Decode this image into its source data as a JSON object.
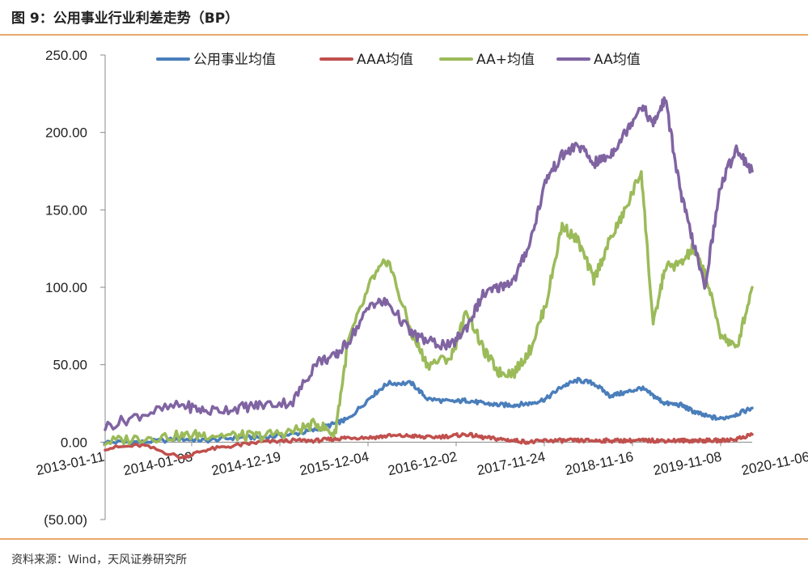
{
  "title": "图 9：公用事业行业利差走势（BP）",
  "source": "资料来源：Wind，天风证券研究所",
  "colors": {
    "rule": "#e8a86a",
    "negative_label": "#c00000"
  },
  "chart_data": {
    "type": "line",
    "title": "图 9：公用事业行业利差走势（BP）",
    "ylim": [
      -50,
      250
    ],
    "yticks": [
      "250.00",
      "200.00",
      "150.00",
      "100.00",
      "50.00",
      "0.00",
      "(50.00)"
    ],
    "xtick_labels": [
      "2013-01-11",
      "2014-01-03",
      "2014-12-19",
      "2015-12-04",
      "2016-12-02",
      "2017-11-24",
      "2018-11-16",
      "2019-11-08",
      "2020-11-06"
    ],
    "x": [
      2013.03,
      2013.5,
      2014.0,
      2014.3,
      2014.7,
      2015.0,
      2015.4,
      2015.7,
      2015.93,
      2016.1,
      2016.4,
      2016.6,
      2016.9,
      2017.1,
      2017.4,
      2017.6,
      2017.8,
      2018.0,
      2018.2,
      2018.4,
      2018.6,
      2018.8,
      2019.0,
      2019.2,
      2019.4,
      2019.6,
      2019.8,
      2019.95,
      2020.1,
      2020.3,
      2020.45,
      2020.6,
      2020.8,
      2021.0,
      2021.2
    ],
    "series": [
      {
        "name": "公用事业均值",
        "color": "#4a7ebb",
        "values": [
          0,
          0,
          2,
          1,
          3,
          3,
          5,
          8,
          12,
          15,
          30,
          38,
          38,
          28,
          26,
          27,
          25,
          24,
          24,
          25,
          28,
          36,
          40,
          38,
          30,
          32,
          35,
          30,
          25,
          24,
          20,
          17,
          15,
          18,
          22
        ]
      },
      {
        "name": "AAA均值",
        "color": "#c0504d",
        "values": [
          -4,
          -2,
          -10,
          -5,
          -2,
          0,
          1,
          1,
          2,
          3,
          3,
          4,
          4,
          3,
          4,
          5,
          3,
          2,
          1,
          0,
          1,
          1,
          1,
          1,
          1,
          1,
          1,
          1,
          1,
          1,
          1,
          1,
          1,
          2,
          5
        ]
      },
      {
        "name": "AA+均值",
        "color": "#9bbb59",
        "values": [
          0,
          3,
          4,
          5,
          4,
          4,
          7,
          12,
          5,
          65,
          105,
          118,
          70,
          50,
          55,
          85,
          60,
          45,
          45,
          60,
          90,
          140,
          130,
          105,
          130,
          150,
          175,
          75,
          113,
          115,
          125,
          110,
          70,
          60,
          100
        ]
      },
      {
        "name": "AA均值",
        "color": "#8064a2",
        "values": [
          10,
          18,
          24,
          20,
          22,
          24,
          26,
          52,
          55,
          65,
          90,
          90,
          70,
          65,
          62,
          75,
          95,
          100,
          105,
          130,
          170,
          185,
          192,
          180,
          185,
          200,
          218,
          205,
          222,
          160,
          130,
          100,
          165,
          190,
          175
        ]
      }
    ]
  }
}
